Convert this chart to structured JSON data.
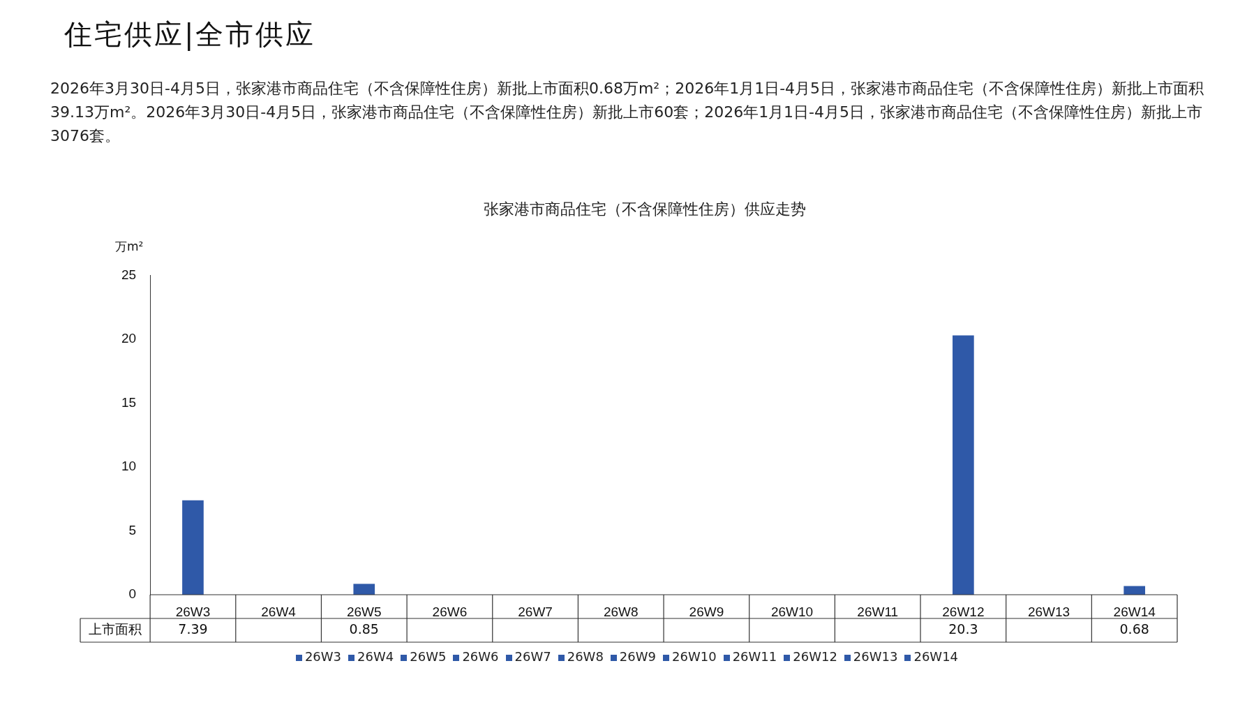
{
  "chart_data": {
    "type": "bar",
    "title": "住宅供应|全市供应",
    "subtitle": "张家港市商品住宅（不含保障性住房）供应走势",
    "annotations": [
      "2026年3月30日-4月5日，张家港市商品住宅（不含保障性住房）新批上市面积0.68万m²；2026年1月1日-4月5日，张家港市商品住宅（不含保障性住房）新批上市面积39.13万m²。2026年3月30日-4月5日，张家港市商品住宅（不含保障性住房）新批上市60套；2026年1月1日-4月5日，张家港市商品住宅（不含保障性住房）新批上市3076套。"
    ],
    "ylabel": "万m²",
    "categories": [
      "26W3",
      "26W4",
      "26W5",
      "26W6",
      "26W7",
      "26W8",
      "26W9",
      "26W10",
      "26W11",
      "26W12",
      "26W13",
      "26W14"
    ],
    "series": [
      {
        "name": "上市面积",
        "color": "#2f59a8",
        "values": [
          7.39,
          null,
          0.85,
          null,
          null,
          null,
          null,
          null,
          null,
          20.3,
          null,
          0.68
        ]
      }
    ],
    "ylim": [
      0,
      25
    ],
    "yticks": [
      0,
      5,
      10,
      15,
      20,
      25
    ],
    "grid": false,
    "legend": "bottom",
    "data_labels": true
  }
}
